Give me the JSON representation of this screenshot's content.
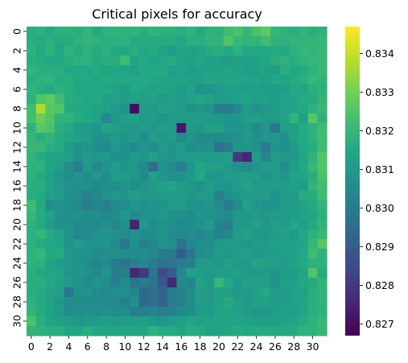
{
  "chart_data": {
    "type": "heatmap",
    "title": "Critical pixels for accuracy",
    "xlabel": "",
    "ylabel": "",
    "rows": 32,
    "cols": 32,
    "x_tick_labels": [
      "0",
      "2",
      "4",
      "6",
      "8",
      "10",
      "12",
      "14",
      "16",
      "18",
      "20",
      "22",
      "24",
      "26",
      "28",
      "30"
    ],
    "y_tick_labels": [
      "0",
      "2",
      "4",
      "6",
      "8",
      "10",
      "12",
      "14",
      "16",
      "18",
      "20",
      "22",
      "24",
      "26",
      "28",
      "30"
    ],
    "colormap": "viridis",
    "vmin": 0.8267,
    "vmax": 0.8347,
    "colorbar_ticks": [
      "0.827",
      "0.828",
      "0.829",
      "0.830",
      "0.831",
      "0.832",
      "0.833",
      "0.834"
    ],
    "values": [
      [
        0.8317,
        0.8318,
        0.8316,
        0.8318,
        0.8318,
        0.8317,
        0.8319,
        0.8316,
        0.8318,
        0.8319,
        0.8318,
        0.8319,
        0.8317,
        0.8319,
        0.8318,
        0.8318,
        0.8317,
        0.8319,
        0.8316,
        0.8318,
        0.8318,
        0.8322,
        0.8324,
        0.832,
        0.8324,
        0.8327,
        0.832,
        0.8318,
        0.8317,
        0.8319,
        0.8317,
        0.8318
      ],
      [
        0.8317,
        0.8316,
        0.8317,
        0.8316,
        0.8316,
        0.8318,
        0.8319,
        0.8318,
        0.8317,
        0.8318,
        0.8318,
        0.8316,
        0.8316,
        0.8316,
        0.8316,
        0.8316,
        0.8314,
        0.8317,
        0.8317,
        0.8319,
        0.8319,
        0.8325,
        0.832,
        0.8319,
        0.8319,
        0.8322,
        0.8318,
        0.8318,
        0.8319,
        0.8319,
        0.8319,
        0.832
      ],
      [
        0.8318,
        0.8315,
        0.8318,
        0.8314,
        0.8318,
        0.8316,
        0.8318,
        0.8316,
        0.8318,
        0.8315,
        0.8315,
        0.8317,
        0.8315,
        0.8316,
        0.8314,
        0.8311,
        0.8314,
        0.8312,
        0.8313,
        0.8316,
        0.8317,
        0.8315,
        0.8318,
        0.8315,
        0.8315,
        0.8315,
        0.8316,
        0.8315,
        0.8318,
        0.832,
        0.8319,
        0.832
      ],
      [
        0.8317,
        0.8316,
        0.8315,
        0.8315,
        0.8317,
        0.8318,
        0.8318,
        0.8316,
        0.8317,
        0.8317,
        0.8322,
        0.8314,
        0.8316,
        0.8313,
        0.8314,
        0.8316,
        0.8313,
        0.8312,
        0.8315,
        0.8312,
        0.8312,
        0.8311,
        0.8312,
        0.8312,
        0.8312,
        0.8314,
        0.8317,
        0.8318,
        0.8317,
        0.8318,
        0.832,
        0.832
      ],
      [
        0.8319,
        0.8317,
        0.8317,
        0.8317,
        0.8315,
        0.8315,
        0.8315,
        0.8316,
        0.8314,
        0.8315,
        0.8313,
        0.8312,
        0.8315,
        0.8315,
        0.8316,
        0.8312,
        0.8313,
        0.8311,
        0.8312,
        0.8313,
        0.8313,
        0.8313,
        0.8313,
        0.8311,
        0.8312,
        0.8313,
        0.8311,
        0.8317,
        0.8315,
        0.8316,
        0.8318,
        0.832
      ],
      [
        0.8317,
        0.8318,
        0.8319,
        0.8316,
        0.8317,
        0.8315,
        0.8316,
        0.8315,
        0.8316,
        0.8315,
        0.8315,
        0.8315,
        0.8315,
        0.8314,
        0.8313,
        0.8313,
        0.8314,
        0.8313,
        0.8312,
        0.8314,
        0.8313,
        0.8314,
        0.8314,
        0.8314,
        0.8314,
        0.8312,
        0.8315,
        0.8314,
        0.8316,
        0.8317,
        0.832,
        0.8319
      ],
      [
        0.8319,
        0.8317,
        0.8316,
        0.8318,
        0.8317,
        0.8315,
        0.8315,
        0.8315,
        0.8315,
        0.8313,
        0.8311,
        0.8315,
        0.8314,
        0.8312,
        0.8314,
        0.8313,
        0.831,
        0.8313,
        0.8308,
        0.8308,
        0.8311,
        0.8312,
        0.8312,
        0.8311,
        0.8312,
        0.8311,
        0.831,
        0.8311,
        0.8315,
        0.8314,
        0.8317,
        0.8318
      ],
      [
        0.8318,
        0.8325,
        0.8327,
        0.8322,
        0.8316,
        0.8316,
        0.8315,
        0.8315,
        0.8312,
        0.8313,
        0.8311,
        0.8313,
        0.8312,
        0.8313,
        0.8311,
        0.8312,
        0.8311,
        0.8312,
        0.8314,
        0.8313,
        0.831,
        0.8311,
        0.8312,
        0.8313,
        0.8312,
        0.8312,
        0.8311,
        0.8313,
        0.8314,
        0.8316,
        0.8316,
        0.8319
      ],
      [
        0.8322,
        0.8337,
        0.8326,
        0.8325,
        0.8316,
        0.8315,
        0.8315,
        0.8313,
        0.8312,
        0.831,
        0.8308,
        0.827,
        0.8311,
        0.831,
        0.8312,
        0.8312,
        0.831,
        0.8308,
        0.8309,
        0.8308,
        0.83,
        0.83,
        0.8305,
        0.8311,
        0.8308,
        0.8309,
        0.8311,
        0.8313,
        0.8313,
        0.8315,
        0.8318,
        0.832
      ],
      [
        0.8323,
        0.8329,
        0.8325,
        0.8318,
        0.8318,
        0.8316,
        0.8315,
        0.8313,
        0.8304,
        0.8309,
        0.8312,
        0.8312,
        0.831,
        0.831,
        0.8308,
        0.831,
        0.831,
        0.831,
        0.8311,
        0.831,
        0.831,
        0.8308,
        0.8309,
        0.8311,
        0.8312,
        0.831,
        0.831,
        0.8313,
        0.8319,
        0.8312,
        0.8326,
        0.8318
      ],
      [
        0.8318,
        0.8326,
        0.8324,
        0.8317,
        0.8315,
        0.8311,
        0.8311,
        0.8308,
        0.8313,
        0.8312,
        0.831,
        0.8309,
        0.831,
        0.8309,
        0.8311,
        0.831,
        0.8272,
        0.831,
        0.8309,
        0.8312,
        0.8312,
        0.8308,
        0.8308,
        0.8309,
        0.8305,
        0.8309,
        0.8299,
        0.8312,
        0.8312,
        0.8316,
        0.8318,
        0.8322
      ],
      [
        0.832,
        0.8317,
        0.8319,
        0.8316,
        0.8313,
        0.8312,
        0.8311,
        0.8307,
        0.8307,
        0.831,
        0.8308,
        0.831,
        0.8306,
        0.8311,
        0.8309,
        0.831,
        0.8305,
        0.8308,
        0.8305,
        0.8306,
        0.8305,
        0.8306,
        0.8307,
        0.831,
        0.8307,
        0.8308,
        0.8309,
        0.8307,
        0.8312,
        0.8315,
        0.8318,
        0.8322
      ],
      [
        0.832,
        0.832,
        0.8317,
        0.8316,
        0.831,
        0.8307,
        0.8309,
        0.8306,
        0.8305,
        0.8309,
        0.8307,
        0.8305,
        0.8308,
        0.8306,
        0.831,
        0.8308,
        0.831,
        0.8306,
        0.8307,
        0.8307,
        0.8297,
        0.83,
        0.8309,
        0.8308,
        0.8307,
        0.83,
        0.8308,
        0.8307,
        0.831,
        0.8315,
        0.8316,
        0.8322
      ],
      [
        0.8319,
        0.8316,
        0.8313,
        0.8313,
        0.8312,
        0.8307,
        0.831,
        0.8309,
        0.831,
        0.8307,
        0.8307,
        0.831,
        0.8308,
        0.8312,
        0.8309,
        0.8308,
        0.831,
        0.8311,
        0.831,
        0.831,
        0.831,
        0.8312,
        0.828,
        0.8275,
        0.8311,
        0.8303,
        0.831,
        0.8309,
        0.8309,
        0.8314,
        0.8318,
        0.8325
      ],
      [
        0.8318,
        0.8318,
        0.8314,
        0.8312,
        0.8306,
        0.8301,
        0.831,
        0.8304,
        0.8308,
        0.8311,
        0.8308,
        0.8308,
        0.8305,
        0.8295,
        0.8308,
        0.8305,
        0.8301,
        0.8308,
        0.8314,
        0.8312,
        0.8312,
        0.831,
        0.8307,
        0.8305,
        0.8308,
        0.8311,
        0.8311,
        0.8306,
        0.8311,
        0.8315,
        0.832,
        0.8325
      ],
      [
        0.8318,
        0.8316,
        0.8313,
        0.8308,
        0.8306,
        0.8308,
        0.8306,
        0.8309,
        0.8306,
        0.8311,
        0.831,
        0.8309,
        0.8304,
        0.8312,
        0.8309,
        0.8307,
        0.8307,
        0.8309,
        0.8315,
        0.8309,
        0.8308,
        0.8311,
        0.8311,
        0.8311,
        0.8311,
        0.8308,
        0.831,
        0.8309,
        0.8313,
        0.8313,
        0.8317,
        0.8324
      ],
      [
        0.8317,
        0.8317,
        0.8313,
        0.831,
        0.8308,
        0.8307,
        0.8307,
        0.8304,
        0.8306,
        0.8306,
        0.8309,
        0.8306,
        0.8308,
        0.831,
        0.8312,
        0.8314,
        0.8311,
        0.8309,
        0.8307,
        0.8311,
        0.8309,
        0.8308,
        0.831,
        0.8313,
        0.831,
        0.831,
        0.8311,
        0.8311,
        0.8312,
        0.8311,
        0.8319,
        0.8322
      ],
      [
        0.8317,
        0.8315,
        0.8312,
        0.831,
        0.8307,
        0.8305,
        0.8302,
        0.8304,
        0.8307,
        0.8309,
        0.8308,
        0.8311,
        0.8309,
        0.8309,
        0.8311,
        0.831,
        0.831,
        0.8309,
        0.831,
        0.831,
        0.8302,
        0.8307,
        0.8309,
        0.831,
        0.831,
        0.831,
        0.8308,
        0.831,
        0.831,
        0.8316,
        0.8316,
        0.8322
      ],
      [
        0.8322,
        0.8316,
        0.8305,
        0.8308,
        0.8306,
        0.8304,
        0.8301,
        0.8303,
        0.8302,
        0.8305,
        0.8306,
        0.8309,
        0.8307,
        0.8308,
        0.8308,
        0.831,
        0.831,
        0.8308,
        0.8307,
        0.8308,
        0.8306,
        0.83,
        0.8305,
        0.8312,
        0.8309,
        0.8307,
        0.8308,
        0.8311,
        0.8311,
        0.8313,
        0.8316,
        0.8319
      ],
      [
        0.832,
        0.8316,
        0.8312,
        0.8307,
        0.8307,
        0.8307,
        0.8306,
        0.8306,
        0.8304,
        0.8306,
        0.8309,
        0.8305,
        0.8307,
        0.8307,
        0.8309,
        0.8307,
        0.8307,
        0.8306,
        0.8308,
        0.8307,
        0.8307,
        0.8305,
        0.8309,
        0.8309,
        0.831,
        0.8309,
        0.831,
        0.831,
        0.8311,
        0.8313,
        0.8314,
        0.8318
      ],
      [
        0.8318,
        0.8316,
        0.831,
        0.8307,
        0.8307,
        0.8305,
        0.8306,
        0.8304,
        0.8307,
        0.8304,
        0.8306,
        0.8275,
        0.8309,
        0.8306,
        0.8307,
        0.8306,
        0.8305,
        0.8306,
        0.8307,
        0.831,
        0.8303,
        0.8301,
        0.8311,
        0.831,
        0.8312,
        0.8309,
        0.8312,
        0.8311,
        0.8315,
        0.8312,
        0.8315,
        0.8319
      ],
      [
        0.8318,
        0.832,
        0.8316,
        0.8313,
        0.8308,
        0.8304,
        0.8305,
        0.8307,
        0.8308,
        0.8307,
        0.8305,
        0.8307,
        0.8306,
        0.8306,
        0.8308,
        0.8304,
        0.8304,
        0.8305,
        0.8303,
        0.8306,
        0.8302,
        0.8304,
        0.831,
        0.8312,
        0.8309,
        0.8309,
        0.8311,
        0.8313,
        0.8311,
        0.8315,
        0.8318,
        0.832
      ],
      [
        0.8318,
        0.8316,
        0.8315,
        0.8314,
        0.8308,
        0.831,
        0.8308,
        0.8308,
        0.8308,
        0.8305,
        0.8299,
        0.8306,
        0.8302,
        0.8304,
        0.8308,
        0.8306,
        0.8297,
        0.8304,
        0.8306,
        0.8306,
        0.8309,
        0.831,
        0.8311,
        0.8309,
        0.831,
        0.8311,
        0.8312,
        0.8312,
        0.8312,
        0.8314,
        0.832,
        0.8326
      ],
      [
        0.8318,
        0.832,
        0.8315,
        0.8316,
        0.8309,
        0.8307,
        0.8307,
        0.8305,
        0.8306,
        0.8307,
        0.8306,
        0.8305,
        0.8306,
        0.8304,
        0.83,
        0.83,
        0.829,
        0.8298,
        0.8306,
        0.8307,
        0.831,
        0.8309,
        0.8311,
        0.8312,
        0.8309,
        0.831,
        0.8311,
        0.8312,
        0.8312,
        0.8315,
        0.8322,
        0.8318
      ],
      [
        0.8318,
        0.8318,
        0.8313,
        0.831,
        0.8309,
        0.8308,
        0.8306,
        0.8303,
        0.8305,
        0.83,
        0.8297,
        0.8301,
        0.8304,
        0.83,
        0.8297,
        0.8298,
        0.83,
        0.8302,
        0.831,
        0.831,
        0.8309,
        0.8312,
        0.831,
        0.831,
        0.8313,
        0.8312,
        0.8312,
        0.8311,
        0.8313,
        0.8315,
        0.8318,
        0.8318
      ],
      [
        0.8317,
        0.8315,
        0.8314,
        0.8313,
        0.8308,
        0.8308,
        0.8307,
        0.8304,
        0.8308,
        0.8301,
        0.8302,
        0.8276,
        0.828,
        0.8298,
        0.8285,
        0.829,
        0.8304,
        0.8312,
        0.8311,
        0.831,
        0.8311,
        0.8311,
        0.8312,
        0.831,
        0.831,
        0.8311,
        0.8309,
        0.8311,
        0.8311,
        0.8314,
        0.8325,
        0.8316
      ],
      [
        0.8317,
        0.8317,
        0.8315,
        0.8313,
        0.831,
        0.8308,
        0.8305,
        0.8308,
        0.8306,
        0.8301,
        0.8305,
        0.8298,
        0.83,
        0.8298,
        0.8289,
        0.8276,
        0.8305,
        0.8303,
        0.8313,
        0.831,
        0.832,
        0.8315,
        0.831,
        0.8312,
        0.8312,
        0.8312,
        0.8307,
        0.8312,
        0.8312,
        0.8315,
        0.8316,
        0.8319
      ],
      [
        0.8317,
        0.8316,
        0.8313,
        0.8312,
        0.8298,
        0.8307,
        0.8308,
        0.8305,
        0.8304,
        0.8306,
        0.8306,
        0.8303,
        0.8294,
        0.8296,
        0.8292,
        0.83,
        0.8302,
        0.8306,
        0.8311,
        0.831,
        0.8312,
        0.8312,
        0.8309,
        0.831,
        0.8312,
        0.8315,
        0.831,
        0.8311,
        0.8312,
        0.8313,
        0.8317,
        0.8319
      ],
      [
        0.8318,
        0.8316,
        0.8313,
        0.8309,
        0.8305,
        0.8306,
        0.8305,
        0.8306,
        0.8304,
        0.8304,
        0.8302,
        0.8307,
        0.8294,
        0.8296,
        0.8292,
        0.83,
        0.8302,
        0.8306,
        0.8311,
        0.831,
        0.8312,
        0.8316,
        0.8312,
        0.831,
        0.8312,
        0.8312,
        0.831,
        0.8311,
        0.8312,
        0.8314,
        0.8317,
        0.8319
      ],
      [
        0.8319,
        0.8316,
        0.8313,
        0.831,
        0.8306,
        0.8306,
        0.8307,
        0.8306,
        0.8307,
        0.8305,
        0.8306,
        0.8301,
        0.8302,
        0.8303,
        0.8301,
        0.8302,
        0.8305,
        0.8306,
        0.831,
        0.831,
        0.8313,
        0.8314,
        0.8313,
        0.8311,
        0.8309,
        0.831,
        0.8311,
        0.8312,
        0.8312,
        0.8313,
        0.8317,
        0.8318
      ],
      [
        0.8324,
        0.8317,
        0.8314,
        0.8312,
        0.8311,
        0.8309,
        0.831,
        0.831,
        0.8312,
        0.8311,
        0.8311,
        0.8311,
        0.8312,
        0.8309,
        0.8308,
        0.8311,
        0.8312,
        0.8314,
        0.8312,
        0.8314,
        0.8314,
        0.8313,
        0.8313,
        0.8313,
        0.8312,
        0.8312,
        0.8312,
        0.8313,
        0.8314,
        0.8316,
        0.8318,
        0.832
      ],
      [
        0.8319,
        0.8318,
        0.8317,
        0.8317,
        0.8315,
        0.8314,
        0.8317,
        0.8315,
        0.8314,
        0.8314,
        0.8315,
        0.8314,
        0.8314,
        0.8318,
        0.8316,
        0.8316,
        0.8314,
        0.8316,
        0.8316,
        0.8313,
        0.8313,
        0.8314,
        0.8316,
        0.8315,
        0.8316,
        0.8316,
        0.8316,
        0.8315,
        0.8316,
        0.8318,
        0.8318,
        0.832
      ]
    ]
  }
}
